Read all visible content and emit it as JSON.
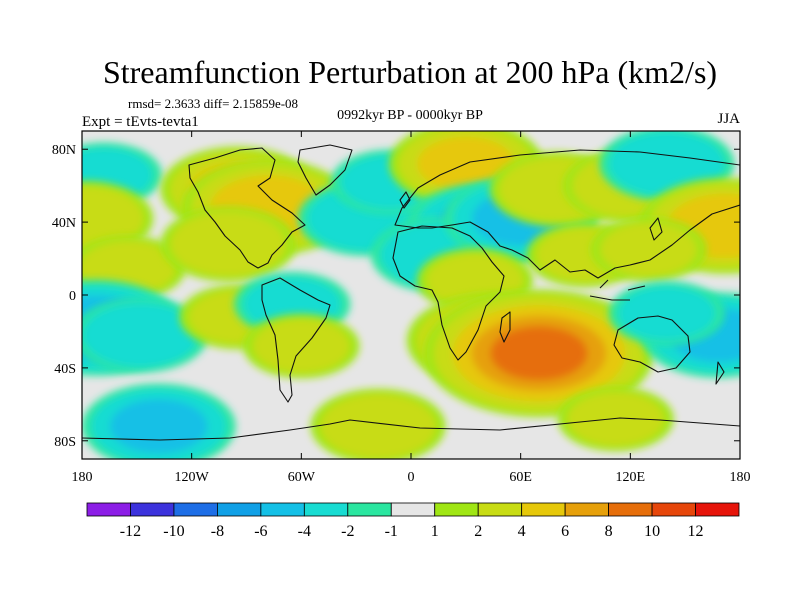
{
  "chart_data": {
    "type": "heatmap",
    "title": "Streamfunction Perturbation at 200 hPa (km2/s)",
    "stats": "rmsd= 2.3633 diff= 2.15859e-08",
    "experiment": "Expt = tEvts-tevta1",
    "period": "0992kyr BP - 0000kyr BP",
    "season": "JJA",
    "x_range": [
      -180,
      180
    ],
    "y_range": [
      -90,
      90
    ],
    "x_ticks": [
      {
        "value": -180,
        "label": "180"
      },
      {
        "value": -120,
        "label": "120W"
      },
      {
        "value": -60,
        "label": "60W"
      },
      {
        "value": 0,
        "label": "0"
      },
      {
        "value": 60,
        "label": "60E"
      },
      {
        "value": 120,
        "label": "120E"
      },
      {
        "value": 180,
        "label": "180"
      }
    ],
    "y_ticks": [
      {
        "value": 80,
        "label": "80N"
      },
      {
        "value": 40,
        "label": "40N"
      },
      {
        "value": 0,
        "label": "0"
      },
      {
        "value": -40,
        "label": "40S"
      },
      {
        "value": -80,
        "label": "80S"
      }
    ],
    "colorbar": {
      "levels": [
        "-12",
        "-10",
        "-8",
        "-6",
        "-4",
        "-2",
        "-1",
        "1",
        "2",
        "4",
        "6",
        "8",
        "10",
        "12"
      ],
      "colors": [
        "#8c1ee6",
        "#3c32dc",
        "#1e6ee6",
        "#10a0e6",
        "#14c0e6",
        "#18dcd2",
        "#2ae6a0",
        "#e6e6e6",
        "#a0e614",
        "#c8dc14",
        "#e6c80a",
        "#e6a00a",
        "#e66e0a",
        "#e6460a",
        "#e6140a"
      ]
    },
    "field": [
      {
        "lon": -168,
        "lat": 66,
        "value": -2
      },
      {
        "lon": -178,
        "lat": 42,
        "value": 3
      },
      {
        "lon": -155,
        "lat": 15,
        "value": 2
      },
      {
        "lon": -172,
        "lat": -18,
        "value": -5
      },
      {
        "lon": -148,
        "lat": -22,
        "value": -3
      },
      {
        "lon": -138,
        "lat": -72,
        "value": -4
      },
      {
        "lon": -95,
        "lat": 58,
        "value": 4
      },
      {
        "lon": -78,
        "lat": 48,
        "value": 5
      },
      {
        "lon": -100,
        "lat": 28,
        "value": 3
      },
      {
        "lon": -95,
        "lat": -12,
        "value": 2
      },
      {
        "lon": -65,
        "lat": -5,
        "value": -2
      },
      {
        "lon": -60,
        "lat": -28,
        "value": 2
      },
      {
        "lon": -25,
        "lat": 42,
        "value": -3
      },
      {
        "lon": -12,
        "lat": 62,
        "value": -2
      },
      {
        "lon": -18,
        "lat": -72,
        "value": 3
      },
      {
        "lon": 30,
        "lat": 72,
        "value": 4
      },
      {
        "lon": 40,
        "lat": 38,
        "value": -4
      },
      {
        "lon": 15,
        "lat": 22,
        "value": -3
      },
      {
        "lon": 60,
        "lat": 42,
        "value": -4
      },
      {
        "lon": 35,
        "lat": 8,
        "value": 2
      },
      {
        "lon": 45,
        "lat": -25,
        "value": 5
      },
      {
        "lon": 70,
        "lat": -32,
        "value": 8
      },
      {
        "lon": 80,
        "lat": 58,
        "value": 3
      },
      {
        "lon": 95,
        "lat": 22,
        "value": 2
      },
      {
        "lon": 120,
        "lat": 60,
        "value": 3
      },
      {
        "lon": 140,
        "lat": 72,
        "value": -3
      },
      {
        "lon": 172,
        "lat": 38,
        "value": 5
      },
      {
        "lon": 130,
        "lat": 25,
        "value": 2
      },
      {
        "lon": 168,
        "lat": -22,
        "value": -4
      },
      {
        "lon": 140,
        "lat": -10,
        "value": -2
      },
      {
        "lon": 112,
        "lat": -68,
        "value": 2
      }
    ]
  }
}
